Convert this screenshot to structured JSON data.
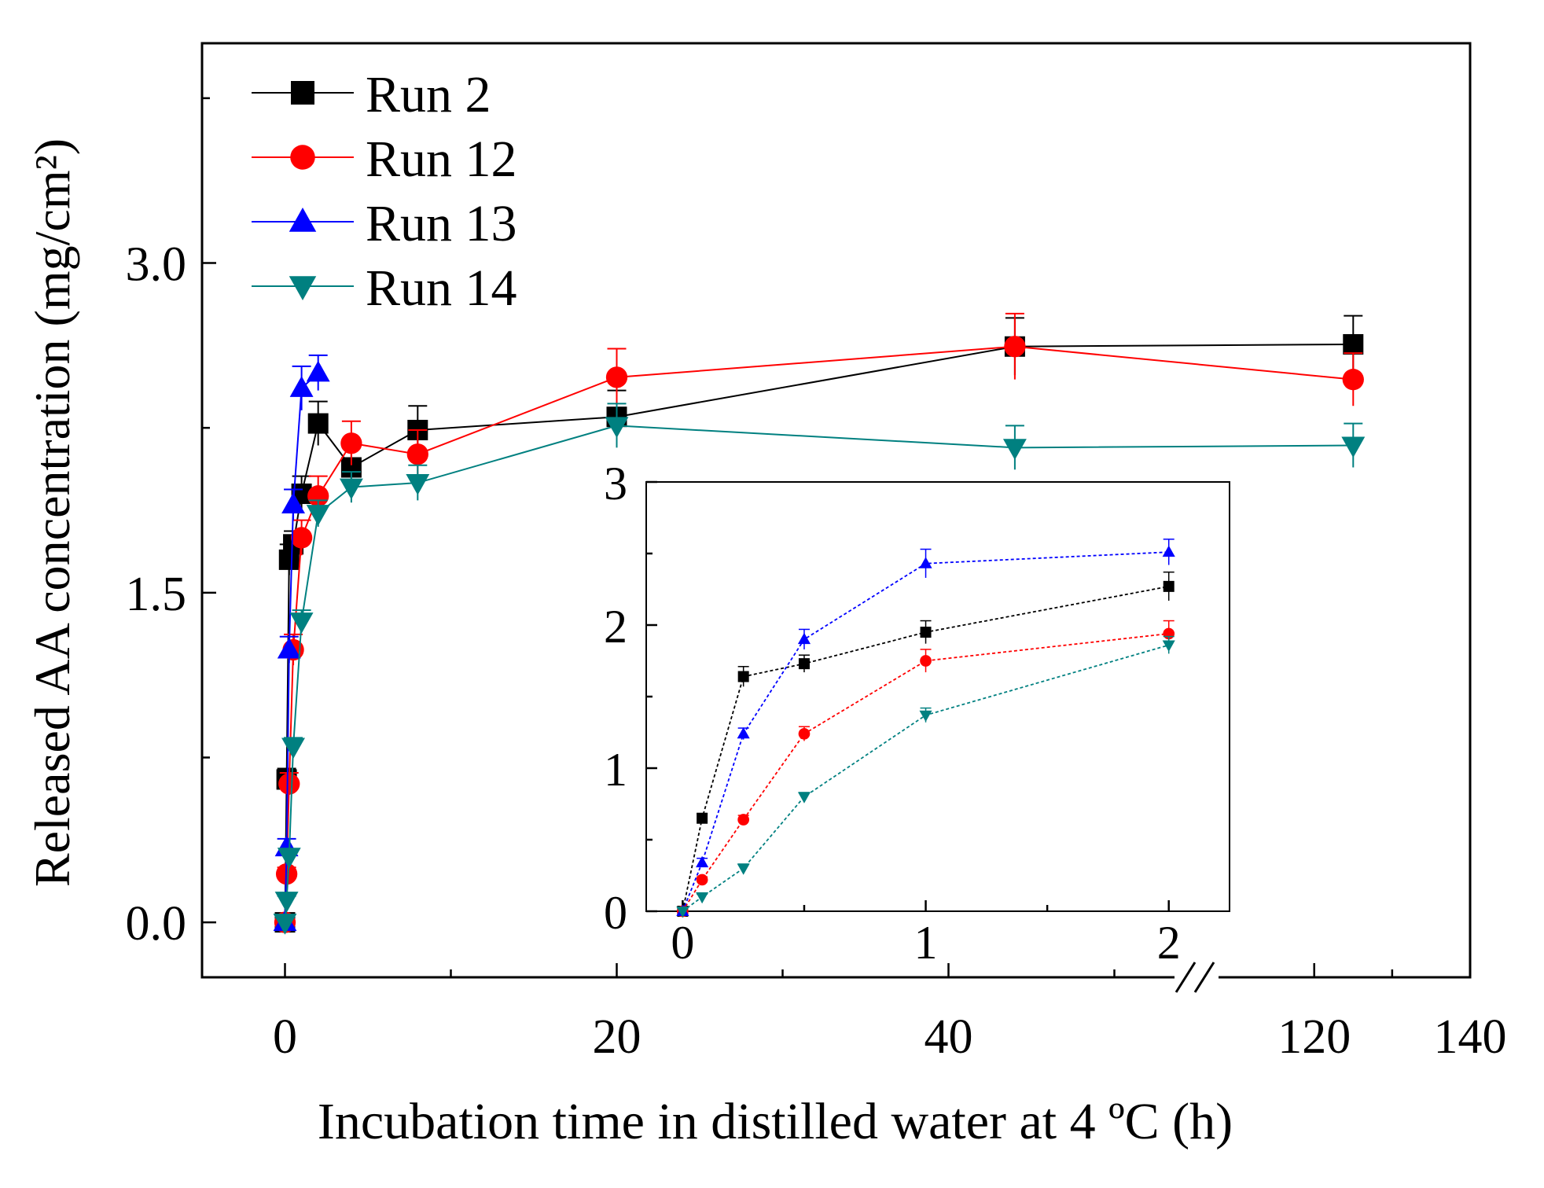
{
  "chart_data": [
    {
      "type": "line",
      "role": "main",
      "xlabel": "Incubation time in distilled water at 4 ºC (h)",
      "ylabel": "Released AA concentration (mg/cm²)",
      "xlim_segment1": [
        -5,
        55
      ],
      "xlim_segment2": [
        105,
        140
      ],
      "x_break": true,
      "ylim": [
        -0.25,
        4.0
      ],
      "x_ticks": [
        0,
        20,
        40,
        120,
        140
      ],
      "x_tick_labels": [
        "0",
        "20",
        "40",
        "120",
        "140"
      ],
      "y_ticks": [
        0.0,
        1.5,
        3.0
      ],
      "y_tick_labels": [
        "0.0",
        "1.5",
        "3.0"
      ],
      "legend_position": "top-left",
      "series": [
        {
          "name": "Run 2",
          "color": "#000000",
          "marker": "square",
          "x": [
            0,
            0.1,
            0.25,
            0.5,
            1,
            2,
            4,
            8,
            20,
            44,
            125
          ],
          "y": [
            0.0,
            0.65,
            1.65,
            1.72,
            1.95,
            2.27,
            2.07,
            2.24,
            2.3,
            2.62,
            2.63
          ],
          "err": [
            0.02,
            0.05,
            0.07,
            0.06,
            0.08,
            0.1,
            0.09,
            0.11,
            0.12,
            0.13,
            0.13
          ]
        },
        {
          "name": "Run 12",
          "color": "#ff0000",
          "marker": "circle",
          "x": [
            0,
            0.1,
            0.25,
            0.5,
            1,
            2,
            4,
            8,
            20,
            44,
            125
          ],
          "y": [
            0.0,
            0.22,
            0.63,
            1.24,
            1.75,
            1.94,
            2.18,
            2.13,
            2.48,
            2.62,
            2.47
          ],
          "err": [
            0.02,
            0.03,
            0.05,
            0.07,
            0.08,
            0.09,
            0.1,
            0.11,
            0.13,
            0.15,
            0.12
          ]
        },
        {
          "name": "Run 13",
          "color": "#0000ff",
          "marker": "triangle-up",
          "x": [
            0,
            0.1,
            0.25,
            0.5,
            1,
            2
          ],
          "y": [
            0.0,
            0.34,
            1.24,
            1.9,
            2.43,
            2.5
          ],
          "err": [
            0.02,
            0.04,
            0.06,
            0.07,
            0.1,
            0.08
          ]
        },
        {
          "name": "Run 14",
          "color": "#008080",
          "marker": "triangle-down",
          "x": [
            0,
            0.1,
            0.25,
            0.5,
            1,
            2,
            4,
            8,
            20,
            44,
            125
          ],
          "y": [
            0.0,
            0.1,
            0.3,
            0.8,
            1.37,
            1.86,
            1.98,
            2.0,
            2.26,
            2.16,
            2.17
          ],
          "err": [
            0.02,
            0.02,
            0.03,
            0.04,
            0.05,
            0.06,
            0.07,
            0.08,
            0.1,
            0.1,
            0.1
          ]
        }
      ]
    },
    {
      "type": "line",
      "role": "inset",
      "xlim": [
        -0.15,
        2.25
      ],
      "ylim": [
        0,
        3
      ],
      "x_ticks": [
        0,
        1,
        2
      ],
      "x_tick_labels": [
        "0",
        "1",
        "2"
      ],
      "y_ticks": [
        0,
        1,
        2,
        3
      ],
      "y_tick_labels": [
        "0",
        "1",
        "2",
        "3"
      ],
      "series": [
        {
          "name": "Run 2",
          "color": "#000000",
          "marker": "square",
          "x": [
            0,
            0.08,
            0.25,
            0.5,
            1,
            2
          ],
          "y": [
            0.0,
            0.65,
            1.64,
            1.73,
            1.95,
            2.27
          ],
          "err": [
            0.0,
            0.03,
            0.07,
            0.06,
            0.08,
            0.1
          ]
        },
        {
          "name": "Run 12",
          "color": "#ff0000",
          "marker": "circle",
          "x": [
            0,
            0.08,
            0.25,
            0.5,
            1,
            2
          ],
          "y": [
            0.0,
            0.22,
            0.64,
            1.24,
            1.75,
            1.94
          ],
          "err": [
            0.0,
            0.02,
            0.03,
            0.05,
            0.08,
            0.09
          ]
        },
        {
          "name": "Run 13",
          "color": "#0000ff",
          "marker": "triangle-up",
          "x": [
            0,
            0.08,
            0.25,
            0.5,
            1,
            2
          ],
          "y": [
            0.0,
            0.34,
            1.24,
            1.9,
            2.43,
            2.51
          ],
          "err": [
            0.0,
            0.03,
            0.04,
            0.07,
            0.1,
            0.09
          ]
        },
        {
          "name": "Run 14",
          "color": "#008080",
          "marker": "triangle-down",
          "x": [
            0,
            0.08,
            0.25,
            0.5,
            1,
            2
          ],
          "y": [
            0.0,
            0.1,
            0.3,
            0.8,
            1.37,
            1.86
          ],
          "err": [
            0.0,
            0.02,
            0.03,
            0.03,
            0.05,
            0.06
          ]
        }
      ]
    }
  ]
}
